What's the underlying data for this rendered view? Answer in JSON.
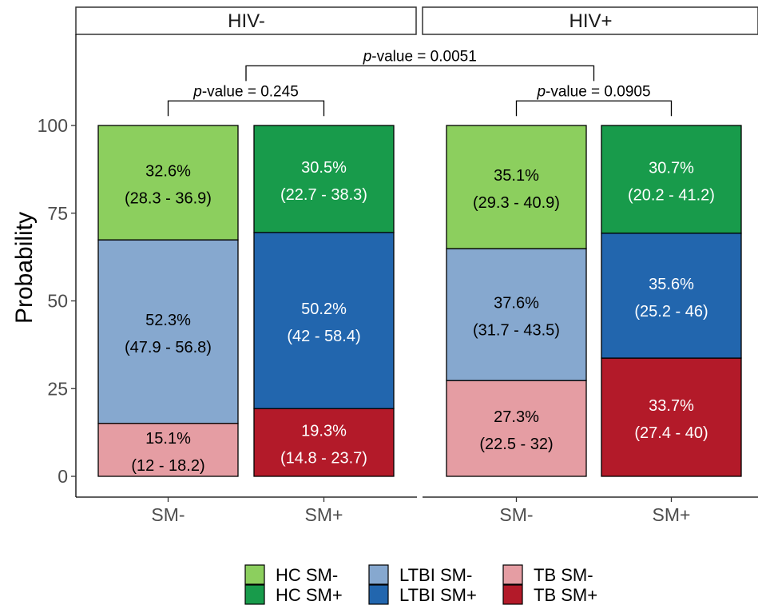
{
  "chart_data": {
    "type": "bar",
    "stacked": true,
    "ylabel": "Probability",
    "ylim": [
      0,
      100
    ],
    "yticks": [
      0,
      25,
      50,
      75,
      100
    ],
    "categories": [
      "SM-",
      "SM+"
    ],
    "panels": [
      {
        "label": "HIV-",
        "bars": [
          {
            "category": "SM-",
            "segments": [
              {
                "series": "TB SM-",
                "value": 15.1,
                "pct": "15.1%",
                "ci": "(12 - 18.2)"
              },
              {
                "series": "LTBI SM-",
                "value": 52.3,
                "pct": "52.3%",
                "ci": "(47.9 - 56.8)"
              },
              {
                "series": "HC SM-",
                "value": 32.6,
                "pct": "32.6%",
                "ci": "(28.3 - 36.9)"
              }
            ]
          },
          {
            "category": "SM+",
            "segments": [
              {
                "series": "TB SM+",
                "value": 19.3,
                "pct": "19.3%",
                "ci": "(14.8 - 23.7)"
              },
              {
                "series": "LTBI SM+",
                "value": 50.2,
                "pct": "50.2%",
                "ci": "(42 - 58.4)"
              },
              {
                "series": "HC SM+",
                "value": 30.5,
                "pct": "30.5%",
                "ci": "(22.7 - 38.3)"
              }
            ]
          }
        ]
      },
      {
        "label": "HIV+",
        "bars": [
          {
            "category": "SM-",
            "segments": [
              {
                "series": "TB SM-",
                "value": 27.3,
                "pct": "27.3%",
                "ci": "(22.5 - 32)"
              },
              {
                "series": "LTBI SM-",
                "value": 37.6,
                "pct": "37.6%",
                "ci": "(31.7 - 43.5)"
              },
              {
                "series": "HC SM-",
                "value": 35.1,
                "pct": "35.1%",
                "ci": "(29.3 - 40.9)"
              }
            ]
          },
          {
            "category": "SM+",
            "segments": [
              {
                "series": "TB SM+",
                "value": 33.7,
                "pct": "33.7%",
                "ci": "(27.4 - 40)"
              },
              {
                "series": "LTBI SM+",
                "value": 35.6,
                "pct": "35.6%",
                "ci": "(25.2 - 46)"
              },
              {
                "series": "HC SM+",
                "value": 30.7,
                "pct": "30.7%",
                "ci": "(20.2 - 41.2)"
              }
            ]
          }
        ]
      }
    ],
    "colors": {
      "HC SM-": "#8CCF5E",
      "HC SM+": "#189B4B",
      "LTBI SM-": "#86A8CF",
      "LTBI SM+": "#2266AE",
      "TB SM-": "#E59DA3",
      "TB SM+": "#B31A29"
    },
    "text_colors": {
      "HC SM-": "#000000",
      "HC SM+": "#ffffff",
      "LTBI SM-": "#000000",
      "LTBI SM+": "#ffffff",
      "TB SM-": "#000000",
      "TB SM+": "#ffffff"
    },
    "pvalues": {
      "prefix": "p",
      "hivneg_within": {
        "text": "-value = 0.245",
        "y": 107
      },
      "hivpos_within": {
        "text": "-value = 0.0905",
        "y": 107
      },
      "between": {
        "text": "-value = 0.0051",
        "y": 117
      }
    },
    "legend": {
      "position": "bottom",
      "entries": [
        [
          "HC SM-",
          "HC SM+"
        ],
        [
          "LTBI SM-",
          "LTBI SM+"
        ],
        [
          "TB SM-",
          "TB SM+"
        ]
      ]
    }
  }
}
